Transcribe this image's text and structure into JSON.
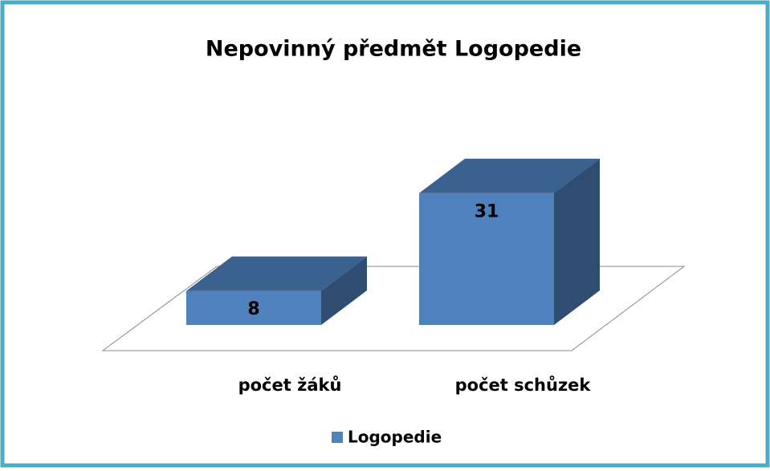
{
  "chart_data": {
    "type": "bar3d",
    "title": "Nepovinný předmět Logopedie",
    "categories": [
      "počet žáků",
      "počet schůzek"
    ],
    "series": [
      {
        "name": "Logopedie",
        "color": "#4f81bd",
        "values": [
          8,
          31
        ]
      }
    ],
    "legend": "bottom"
  }
}
